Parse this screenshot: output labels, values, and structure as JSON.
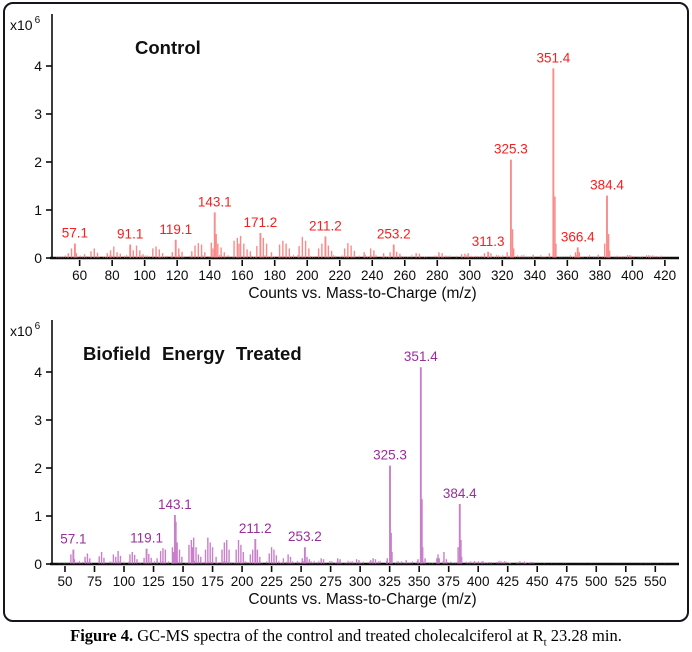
{
  "caption": {
    "label": "Figure 4.",
    "text": " GC-MS spectra of the control and treated cholecalciferol at R",
    "subscript": "t",
    "tail": " 23.28 min."
  },
  "axis_shared": {
    "xlabel": "Counts vs. Mass-to-Charge (m/z)",
    "y_exponent_prefix": "x10",
    "y_exponent": "6",
    "yticks": [
      0,
      1,
      2,
      3,
      4
    ],
    "axis_color": "#0c0c0c"
  },
  "chart_data": [
    {
      "type": "bar",
      "variant": "mass-spectrum-sticks",
      "title": "Control",
      "line_color": "#f98b8b",
      "label_color": "#fb1d1d",
      "xlim": [
        43,
        425
      ],
      "xtick_start": 60,
      "xtick_end": 420,
      "xtick_step": 20,
      "ylim": [
        0,
        5
      ],
      "y_scale_note": "intensities in counts x10^6",
      "labeled_peaks": [
        {
          "mz": 57.1,
          "h": 0.3
        },
        {
          "mz": 91.1,
          "h": 0.28
        },
        {
          "mz": 119.1,
          "h": 0.38
        },
        {
          "mz": 143.1,
          "h": 0.95
        },
        {
          "mz": 171.2,
          "h": 0.52
        },
        {
          "mz": 211.2,
          "h": 0.45
        },
        {
          "mz": 253.2,
          "h": 0.28
        },
        {
          "mz": 311.3,
          "h": 0.13
        },
        {
          "mz": 325.3,
          "h": 2.05
        },
        {
          "mz": 351.4,
          "h": 3.95
        },
        {
          "mz": 366.4,
          "h": 0.22
        },
        {
          "mz": 384.4,
          "h": 1.3
        }
      ],
      "minor_peaks": [
        [
          53,
          0.1
        ],
        [
          55,
          0.2
        ],
        [
          58,
          0.1
        ],
        [
          63,
          0.08
        ],
        [
          67,
          0.14
        ],
        [
          69,
          0.2
        ],
        [
          71,
          0.11
        ],
        [
          77,
          0.1
        ],
        [
          79,
          0.16
        ],
        [
          81,
          0.24
        ],
        [
          83,
          0.12
        ],
        [
          85,
          0.09
        ],
        [
          93,
          0.16
        ],
        [
          95,
          0.26
        ],
        [
          97,
          0.16
        ],
        [
          99,
          0.08
        ],
        [
          105,
          0.2
        ],
        [
          107,
          0.24
        ],
        [
          109,
          0.18
        ],
        [
          111,
          0.1
        ],
        [
          117,
          0.12
        ],
        [
          121,
          0.2
        ],
        [
          123,
          0.13
        ],
        [
          129,
          0.14
        ],
        [
          131,
          0.26
        ],
        [
          133,
          0.31
        ],
        [
          135,
          0.28
        ],
        [
          137,
          0.12
        ],
        [
          141,
          0.32
        ],
        [
          142,
          0.2
        ],
        [
          144,
          0.5
        ],
        [
          145,
          0.3
        ],
        [
          147,
          0.22
        ],
        [
          149,
          0.12
        ],
        [
          155,
          0.36
        ],
        [
          157,
          0.42
        ],
        [
          158,
          0.3
        ],
        [
          159,
          0.46
        ],
        [
          161,
          0.3
        ],
        [
          163,
          0.18
        ],
        [
          165,
          0.14
        ],
        [
          169,
          0.25
        ],
        [
          173,
          0.42
        ],
        [
          175,
          0.3
        ],
        [
          178,
          0.12
        ],
        [
          183,
          0.28
        ],
        [
          185,
          0.36
        ],
        [
          187,
          0.3
        ],
        [
          189,
          0.2
        ],
        [
          195,
          0.25
        ],
        [
          197,
          0.44
        ],
        [
          199,
          0.36
        ],
        [
          201,
          0.2
        ],
        [
          207,
          0.2
        ],
        [
          209,
          0.3
        ],
        [
          213,
          0.26
        ],
        [
          215,
          0.15
        ],
        [
          223,
          0.2
        ],
        [
          225,
          0.31
        ],
        [
          227,
          0.26
        ],
        [
          229,
          0.15
        ],
        [
          235,
          0.12
        ],
        [
          239,
          0.2
        ],
        [
          241,
          0.16
        ],
        [
          247,
          0.1
        ],
        [
          251,
          0.12
        ],
        [
          255,
          0.13
        ],
        [
          257,
          0.09
        ],
        [
          267,
          0.1
        ],
        [
          269,
          0.09
        ],
        [
          281,
          0.12
        ],
        [
          283,
          0.1
        ],
        [
          295,
          0.08
        ],
        [
          297,
          0.09
        ],
        [
          299,
          0.1
        ],
        [
          309,
          0.1
        ],
        [
          313,
          0.1
        ],
        [
          323,
          0.12
        ],
        [
          326.3,
          0.6
        ],
        [
          327,
          0.2
        ],
        [
          339,
          0.07
        ],
        [
          349,
          0.1
        ],
        [
          352.4,
          1.28
        ],
        [
          353,
          0.3
        ],
        [
          365,
          0.12
        ],
        [
          367.4,
          0.12
        ],
        [
          379,
          0.07
        ],
        [
          383,
          0.3
        ],
        [
          385.4,
          0.5
        ],
        [
          386,
          0.15
        ],
        [
          397,
          0.06
        ],
        [
          399,
          0.05
        ],
        [
          411,
          0.05
        ]
      ],
      "noise_regions": [
        {
          "seed": 11,
          "from": 46,
          "to": 418,
          "step": 1.3,
          "max": 0.07
        }
      ]
    },
    {
      "type": "bar",
      "variant": "mass-spectrum-sticks",
      "title": "Biofield Energy Treated",
      "line_color": "#c97fc9",
      "label_color": "#9a2d9a",
      "xlim": [
        39,
        565
      ],
      "xtick_start": 50,
      "xtick_end": 550,
      "xtick_step": 25,
      "ylim": [
        0,
        5
      ],
      "y_scale_note": "intensities in counts x10^6",
      "labeled_peaks": [
        {
          "mz": 57.1,
          "h": 0.3
        },
        {
          "mz": 119.1,
          "h": 0.32
        },
        {
          "mz": 143.1,
          "h": 1.02
        },
        {
          "mz": 211.2,
          "h": 0.52
        },
        {
          "mz": 253.2,
          "h": 0.35
        },
        {
          "mz": 325.3,
          "h": 2.05
        },
        {
          "mz": 351.4,
          "h": 4.1
        },
        {
          "mz": 384.4,
          "h": 1.25
        }
      ],
      "minor_peaks": [
        [
          55,
          0.2
        ],
        [
          58,
          0.1
        ],
        [
          67,
          0.15
        ],
        [
          69,
          0.22
        ],
        [
          71,
          0.12
        ],
        [
          79,
          0.16
        ],
        [
          81,
          0.25
        ],
        [
          83,
          0.13
        ],
        [
          91,
          0.2
        ],
        [
          93,
          0.15
        ],
        [
          95,
          0.27
        ],
        [
          97,
          0.17
        ],
        [
          105,
          0.2
        ],
        [
          107,
          0.25
        ],
        [
          109,
          0.19
        ],
        [
          111,
          0.1
        ],
        [
          117,
          0.13
        ],
        [
          121,
          0.21
        ],
        [
          123,
          0.13
        ],
        [
          128,
          0.12
        ],
        [
          131,
          0.27
        ],
        [
          133,
          0.33
        ],
        [
          135,
          0.3
        ],
        [
          141,
          0.35
        ],
        [
          142,
          0.25
        ],
        [
          144,
          0.88
        ],
        [
          145,
          0.45
        ],
        [
          147,
          0.3
        ],
        [
          149,
          0.15
        ],
        [
          155,
          0.4
        ],
        [
          157,
          0.5
        ],
        [
          158,
          0.35
        ],
        [
          159,
          0.55
        ],
        [
          161,
          0.35
        ],
        [
          163,
          0.2
        ],
        [
          165,
          0.15
        ],
        [
          169,
          0.3
        ],
        [
          171,
          0.55
        ],
        [
          173,
          0.45
        ],
        [
          175,
          0.35
        ],
        [
          178,
          0.15
        ],
        [
          183,
          0.3
        ],
        [
          185,
          0.45
        ],
        [
          187,
          0.5
        ],
        [
          189,
          0.3
        ],
        [
          195,
          0.3
        ],
        [
          197,
          0.5
        ],
        [
          199,
          0.4
        ],
        [
          201,
          0.25
        ],
        [
          207,
          0.2
        ],
        [
          209,
          0.3
        ],
        [
          213,
          0.3
        ],
        [
          215,
          0.15
        ],
        [
          223,
          0.22
        ],
        [
          225,
          0.35
        ],
        [
          227,
          0.3
        ],
        [
          229,
          0.18
        ],
        [
          235,
          0.12
        ],
        [
          239,
          0.2
        ],
        [
          241,
          0.15
        ],
        [
          251,
          0.12
        ],
        [
          255,
          0.15
        ],
        [
          257,
          0.1
        ],
        [
          267,
          0.12
        ],
        [
          269,
          0.1
        ],
        [
          281,
          0.12
        ],
        [
          283,
          0.1
        ],
        [
          297,
          0.1
        ],
        [
          299,
          0.08
        ],
        [
          309,
          0.08
        ],
        [
          311,
          0.12
        ],
        [
          313,
          0.1
        ],
        [
          323,
          0.12
        ],
        [
          326.3,
          0.65
        ],
        [
          327,
          0.25
        ],
        [
          339,
          0.08
        ],
        [
          349,
          0.1
        ],
        [
          352.4,
          1.35
        ],
        [
          353,
          0.35
        ],
        [
          355,
          0.12
        ],
        [
          365,
          0.12
        ],
        [
          366,
          0.2
        ],
        [
          367,
          0.12
        ],
        [
          371,
          0.25
        ],
        [
          373,
          0.1
        ],
        [
          383,
          0.35
        ],
        [
          385.4,
          0.5
        ],
        [
          386,
          0.15
        ],
        [
          397,
          0.06
        ],
        [
          403,
          0.05
        ],
        [
          411,
          0.04
        ],
        [
          421,
          0.04
        ],
        [
          427,
          0.03
        ],
        [
          433,
          0.03
        ],
        [
          440,
          0.03
        ]
      ],
      "noise_regions": [
        {
          "seed": 29,
          "from": 44,
          "to": 448,
          "step": 1.3,
          "max": 0.07
        },
        {
          "seed": 31,
          "from": 448,
          "to": 558,
          "step": 2.0,
          "max": 0.015
        }
      ]
    }
  ]
}
